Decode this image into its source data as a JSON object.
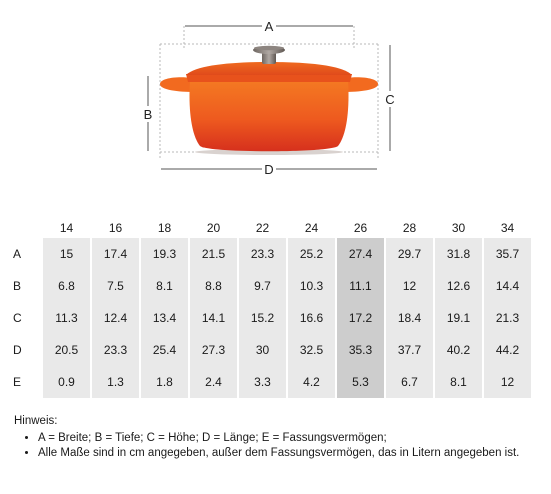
{
  "diagram": {
    "labels": {
      "a": "A",
      "b": "B",
      "c": "C",
      "d": "D"
    }
  },
  "table": {
    "sizes": [
      "14",
      "16",
      "18",
      "20",
      "22",
      "24",
      "26",
      "28",
      "30",
      "34"
    ],
    "highlight_size": "26",
    "rows": [
      {
        "label": "A",
        "values": [
          "15",
          "17.4",
          "19.3",
          "21.5",
          "23.3",
          "25.2",
          "27.4",
          "29.7",
          "31.8",
          "35.7"
        ]
      },
      {
        "label": "B",
        "values": [
          "6.8",
          "7.5",
          "8.1",
          "8.8",
          "9.7",
          "10.3",
          "11.1",
          "12",
          "12.6",
          "14.4"
        ]
      },
      {
        "label": "C",
        "values": [
          "11.3",
          "12.4",
          "13.4",
          "14.1",
          "15.2",
          "16.6",
          "17.2",
          "18.4",
          "19.1",
          "21.3"
        ]
      },
      {
        "label": "D",
        "values": [
          "20.5",
          "23.3",
          "25.4",
          "27.3",
          "30",
          "32.5",
          "35.3",
          "37.7",
          "40.2",
          "44.2"
        ]
      },
      {
        "label": "E",
        "values": [
          "0.9",
          "1.3",
          "1.8",
          "2.4",
          "3.3",
          "4.2",
          "5.3",
          "6.7",
          "8.1",
          "12"
        ]
      }
    ]
  },
  "notes": {
    "heading": "Hinweis:",
    "items": [
      "A = Breite; B = Tiefe; C = Höhe; D = Länge; E = Fassungsvermögen;",
      "Alle Maße sind in cm angegeben, außer dem Fassungsvermögen, das in Litern angegeben ist."
    ]
  },
  "colors": {
    "pot_top": "#f26b1d",
    "pot_bottom": "#d9301c",
    "knob": "#7d7470",
    "cell": "#e9e9e9",
    "cell_highlight": "#cdcdcd"
  }
}
